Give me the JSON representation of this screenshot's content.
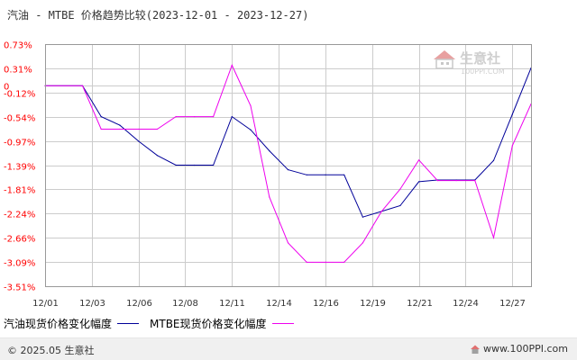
{
  "title": "汽油 - MTBE 价格趋势比较(2023-12-01 - 2023-12-27)",
  "watermark": {
    "name": "生意社",
    "site": "100PPI.COM"
  },
  "footer": {
    "copyright": "© 2025.05 生意社",
    "url": "www.100PPI.com"
  },
  "colors": {
    "series_gasoline": "#000099",
    "series_mtbe": "#ee00ee",
    "grid": "#cccccc",
    "axis": "#999999",
    "tick_text": "#ff0000"
  },
  "chart_data": {
    "type": "line",
    "title": "汽油 - MTBE 价格趋势比较(2023-12-01 - 2023-12-27)",
    "xlabel": "",
    "ylabel": "",
    "x_range": [
      0,
      26
    ],
    "ylim": [
      -3.51,
      0.73
    ],
    "yticks": [
      "0.73%",
      "0.31%",
      "0",
      "-0.12%",
      "-0.54%",
      "-0.97%",
      "-1.39%",
      "-1.81%",
      "-2.24%",
      "-2.66%",
      "-3.09%",
      "-3.51%"
    ],
    "ytick_values": [
      0.73,
      0.31,
      0,
      -0.12,
      -0.54,
      -0.97,
      -1.39,
      -1.81,
      -2.24,
      -2.66,
      -3.09,
      -3.51
    ],
    "xticks": [
      {
        "label": "12/01",
        "day": 0
      },
      {
        "label": "12/03",
        "day": 2.5
      },
      {
        "label": "12/06",
        "day": 5
      },
      {
        "label": "12/08",
        "day": 7.5
      },
      {
        "label": "12/11",
        "day": 10
      },
      {
        "label": "12/14",
        "day": 12.5
      },
      {
        "label": "12/16",
        "day": 15
      },
      {
        "label": "12/19",
        "day": 17.5
      },
      {
        "label": "12/21",
        "day": 20
      },
      {
        "label": "12/24",
        "day": 22.5
      },
      {
        "label": "12/27",
        "day": 25
      }
    ],
    "grid": true,
    "legend_position": "bottom-left",
    "series": [
      {
        "name": "汽油现货价格变化幅度",
        "color": "#000099",
        "points": [
          [
            0,
            0
          ],
          [
            2,
            0
          ],
          [
            3,
            -0.54
          ],
          [
            4,
            -0.69
          ],
          [
            5,
            -0.97
          ],
          [
            6,
            -1.22
          ],
          [
            7,
            -1.39
          ],
          [
            8,
            -1.39
          ],
          [
            9,
            -1.39
          ],
          [
            10,
            -0.54
          ],
          [
            11,
            -0.77
          ],
          [
            12,
            -1.14
          ],
          [
            13,
            -1.47
          ],
          [
            14,
            -1.56
          ],
          [
            15,
            -1.56
          ],
          [
            16,
            -1.56
          ],
          [
            17,
            -2.3
          ],
          [
            18,
            -2.2
          ],
          [
            19,
            -2.1
          ],
          [
            20,
            -1.68
          ],
          [
            21,
            -1.65
          ],
          [
            22,
            -1.65
          ],
          [
            23,
            -1.65
          ],
          [
            24,
            -1.31
          ],
          [
            25,
            -0.5
          ],
          [
            26,
            0.31
          ]
        ]
      },
      {
        "name": "MTBE现货价格变化幅度",
        "color": "#ee00ee",
        "points": [
          [
            0,
            0
          ],
          [
            2,
            0
          ],
          [
            3,
            -0.76
          ],
          [
            4,
            -0.76
          ],
          [
            5,
            -0.76
          ],
          [
            6,
            -0.76
          ],
          [
            7,
            -0.54
          ],
          [
            8,
            -0.54
          ],
          [
            9,
            -0.54
          ],
          [
            10,
            0.36
          ],
          [
            11,
            -0.35
          ],
          [
            12,
            -1.95
          ],
          [
            13,
            -2.75
          ],
          [
            14,
            -3.09
          ],
          [
            15,
            -3.09
          ],
          [
            16,
            -3.09
          ],
          [
            17,
            -2.75
          ],
          [
            18,
            -2.2
          ],
          [
            19,
            -1.81
          ],
          [
            20,
            -1.3
          ],
          [
            21,
            -1.66
          ],
          [
            22,
            -1.66
          ],
          [
            23,
            -1.66
          ],
          [
            24,
            -2.66
          ],
          [
            25,
            -1.05
          ],
          [
            26,
            -0.32
          ]
        ]
      }
    ]
  }
}
